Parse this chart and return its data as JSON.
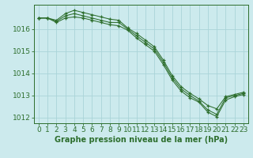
{
  "background_color": "#cceaed",
  "grid_color": "#aad4d8",
  "line_color": "#2d6e2d",
  "title": "Graphe pression niveau de la mer (hPa)",
  "tick_fontsize": 6.5,
  "title_fontsize": 7,
  "hours": [
    0,
    1,
    2,
    3,
    4,
    5,
    6,
    7,
    8,
    9,
    10,
    11,
    12,
    13,
    14,
    15,
    16,
    17,
    18,
    19,
    20,
    21,
    22,
    23
  ],
  "series1": [
    1016.5,
    1016.5,
    1016.35,
    1016.6,
    1016.7,
    1016.6,
    1016.5,
    1016.4,
    1016.3,
    1016.3,
    1016.0,
    1015.7,
    1015.4,
    1015.1,
    1014.5,
    1013.8,
    1013.3,
    1013.0,
    1012.75,
    1012.35,
    1012.15,
    1012.9,
    1013.0,
    1013.1
  ],
  "series2": [
    1016.5,
    1016.5,
    1016.4,
    1016.7,
    1016.85,
    1016.75,
    1016.65,
    1016.55,
    1016.45,
    1016.4,
    1016.05,
    1015.8,
    1015.5,
    1015.2,
    1014.6,
    1013.9,
    1013.4,
    1013.1,
    1012.85,
    1012.55,
    1012.4,
    1012.95,
    1013.05,
    1013.15
  ],
  "series3": [
    1016.5,
    1016.5,
    1016.3,
    1016.5,
    1016.55,
    1016.5,
    1016.4,
    1016.3,
    1016.2,
    1016.15,
    1015.95,
    1015.6,
    1015.3,
    1015.0,
    1014.4,
    1013.7,
    1013.2,
    1012.9,
    1012.7,
    1012.25,
    1012.05,
    1012.8,
    1012.95,
    1013.05
  ],
  "ylim": [
    1011.75,
    1017.1
  ],
  "yticks": [
    1012,
    1013,
    1014,
    1015,
    1016
  ],
  "xlim": [
    -0.5,
    23.5
  ]
}
